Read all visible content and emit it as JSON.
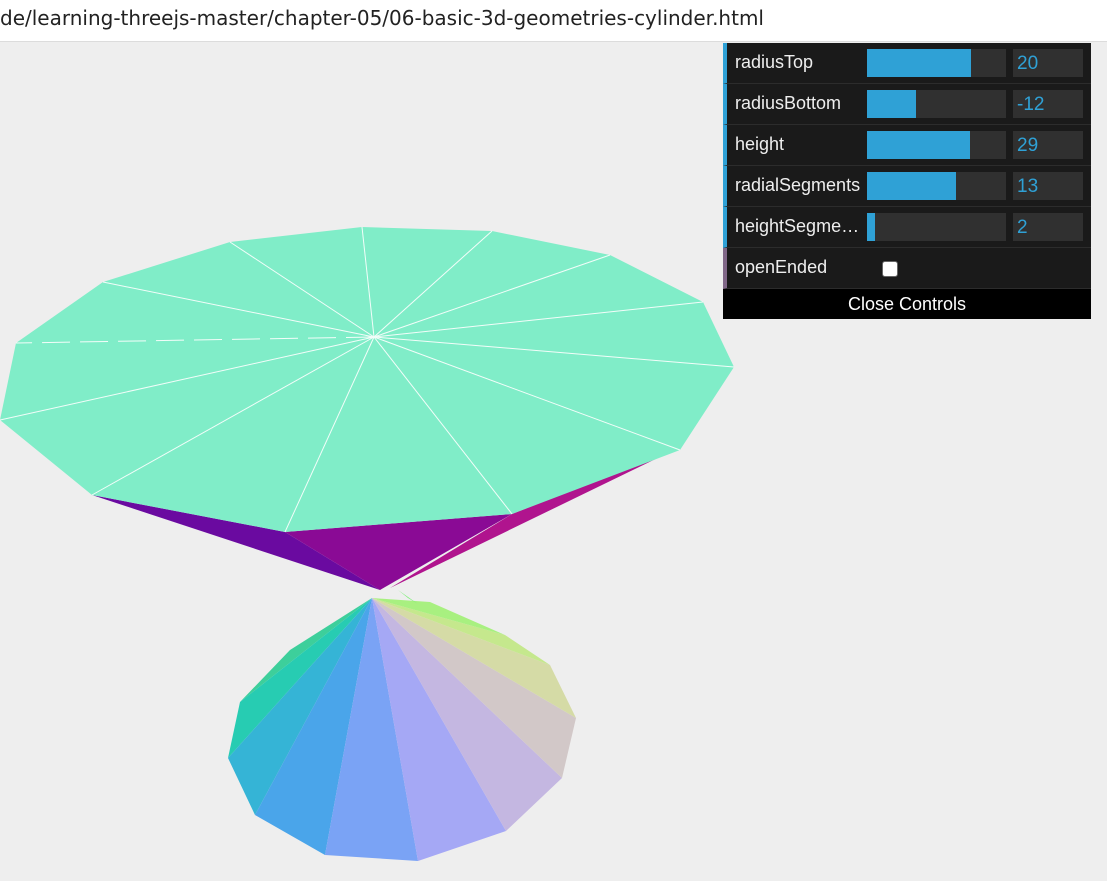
{
  "browser": {
    "url": "de/learning-threejs-master/chapter-05/06-basic-3d-geometries-cylinder.html"
  },
  "controls": {
    "items": [
      {
        "label": "radiusTop",
        "value": "20",
        "fraction": 0.75
      },
      {
        "label": "radiusBottom",
        "value": "-12",
        "fraction": 0.35
      },
      {
        "label": "height",
        "value": "29",
        "fraction": 0.74
      },
      {
        "label": "radialSegments",
        "value": "13",
        "fraction": 0.64
      },
      {
        "label": "heightSegme…",
        "value": "2",
        "fraction": 0.06
      }
    ],
    "open_ended": {
      "label": "openEnded",
      "checked": false
    },
    "close_label": "Close Controls"
  },
  "colors": {
    "slider_fill": "#2fa1d6",
    "top_disc": "#80edc8",
    "background": "#eeeeee"
  }
}
